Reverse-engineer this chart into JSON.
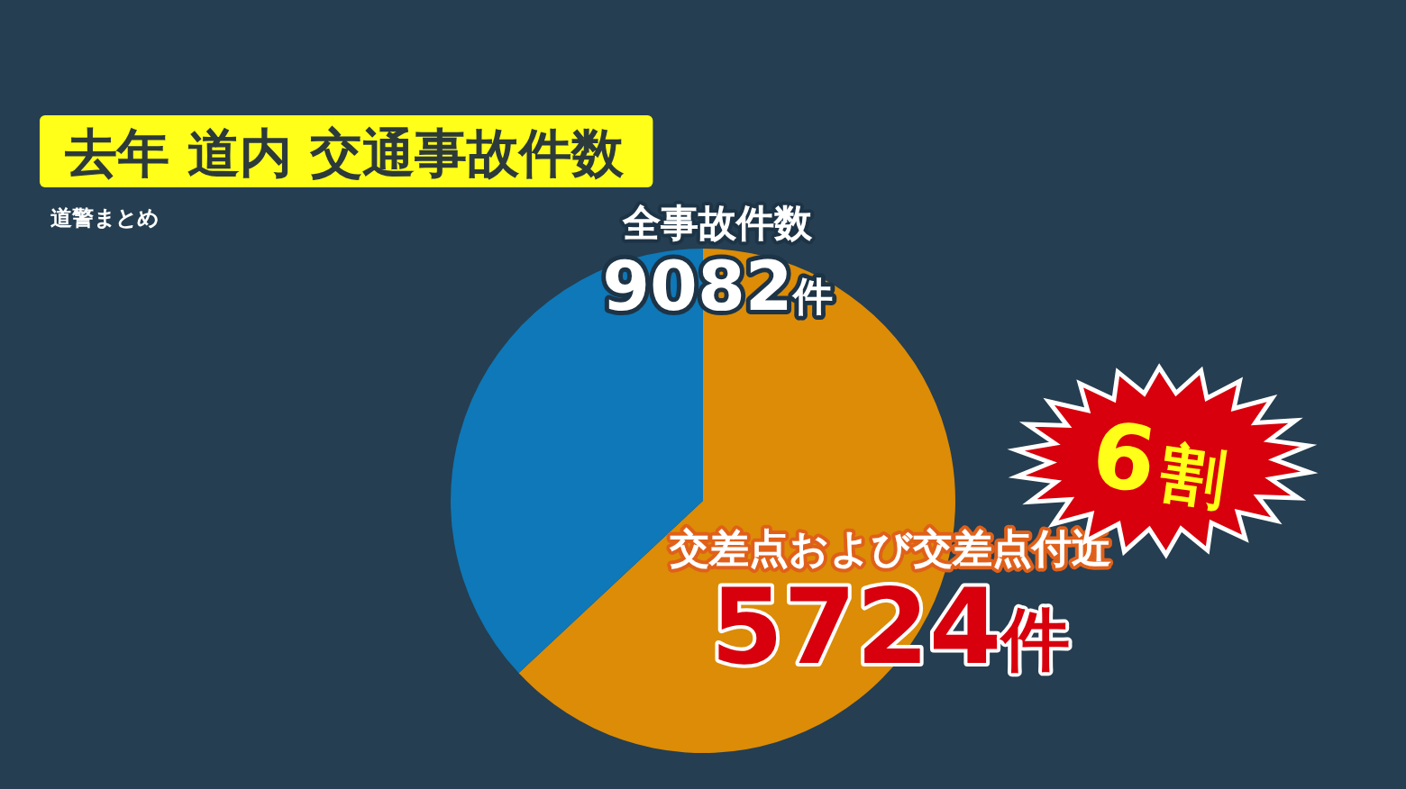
{
  "chart_data": {
    "type": "pie",
    "title": "去年 道内 交通事故件数",
    "subtitle": "道警まとめ",
    "categories": [
      "交差点および交差点付近",
      null
    ],
    "values": [
      5724,
      3358
    ],
    "colors": [
      "#dc8c06",
      "#0e78b8"
    ],
    "value_labels": [
      "5724件",
      null
    ],
    "annotations": [
      "全事故件数",
      "9082件",
      "6割"
    ],
    "legend": false
  }
}
